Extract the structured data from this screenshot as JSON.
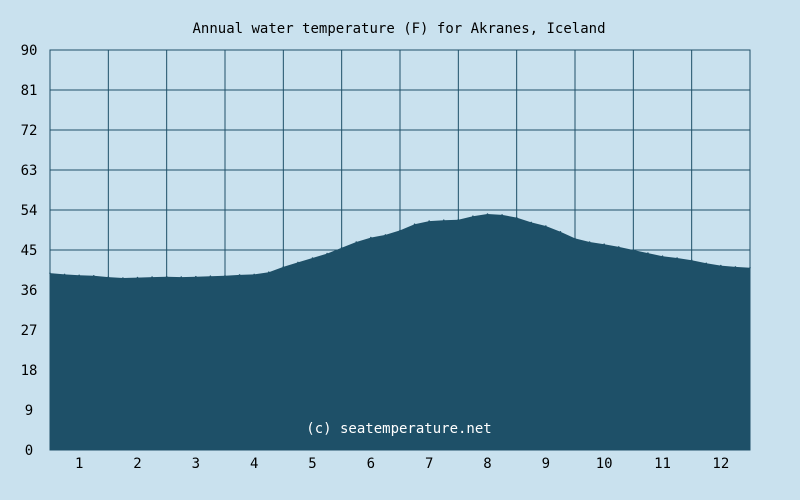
{
  "colors": {
    "background": "#c9e1ee",
    "fill": "#1e5068",
    "grid": "#1e5068"
  },
  "chart_data": {
    "type": "area",
    "title": "Annual water temperature (F) for Akranes, Iceland",
    "watermark": "(c) seatemperature.net",
    "xlabel": "",
    "ylabel": "",
    "ylim": [
      0,
      90
    ],
    "xlim": [
      0.5,
      12.5
    ],
    "grid": true,
    "yticks": [
      "0",
      "9",
      "18",
      "27",
      "36",
      "45",
      "54",
      "63",
      "72",
      "81",
      "90"
    ],
    "xticks": [
      "1",
      "2",
      "3",
      "4",
      "5",
      "6",
      "7",
      "8",
      "9",
      "10",
      "11",
      "12"
    ],
    "x": [
      0.5,
      0.75,
      1.0,
      1.25,
      1.5,
      1.75,
      2.0,
      2.25,
      2.5,
      2.75,
      3.0,
      3.25,
      3.5,
      3.75,
      4.0,
      4.25,
      4.5,
      4.75,
      5.0,
      5.25,
      5.5,
      5.75,
      6.0,
      6.25,
      6.5,
      6.75,
      7.0,
      7.25,
      7.5,
      7.75,
      8.0,
      8.25,
      8.5,
      8.75,
      9.0,
      9.25,
      9.5,
      9.75,
      10.0,
      10.25,
      10.5,
      10.75,
      11.0,
      11.25,
      11.5,
      11.75,
      12.0,
      12.25,
      12.5
    ],
    "values": [
      39.8,
      39.5,
      39.3,
      39.2,
      38.9,
      38.7,
      38.8,
      38.9,
      39.0,
      38.9,
      39.0,
      39.1,
      39.2,
      39.4,
      39.5,
      40.0,
      41.2,
      42.2,
      43.2,
      44.2,
      45.5,
      46.8,
      47.8,
      48.4,
      49.4,
      50.8,
      51.5,
      51.7,
      51.8,
      52.6,
      53.1,
      52.9,
      52.3,
      51.2,
      50.4,
      49.1,
      47.6,
      46.8,
      46.3,
      45.7,
      45.0,
      44.3,
      43.6,
      43.2,
      42.7,
      42.0,
      41.5,
      41.2,
      41.0
    ]
  }
}
